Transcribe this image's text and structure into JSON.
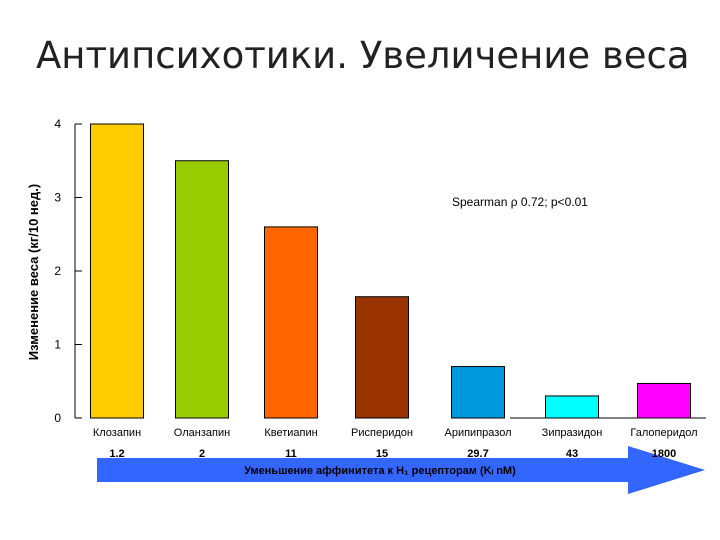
{
  "slide": {
    "title": "Антипсихотики. Увеличение веса"
  },
  "chart_data": {
    "type": "bar",
    "title": "",
    "xlabel": "",
    "ylabel": "Изменение веса (кг/10 нед.)",
    "ylim": [
      0,
      4
    ],
    "yticks": [
      "0",
      "1",
      "2",
      "3",
      "4"
    ],
    "grid": false,
    "categories": [
      "Клозапин",
      "Оланзапин",
      "Кветиапин",
      "Рисперидон",
      "Арипипразол",
      "Зипразидон",
      "Галоперидол"
    ],
    "values": [
      4.0,
      3.5,
      2.6,
      1.65,
      0.7,
      0.3,
      0.47
    ],
    "bar_colors": [
      "#FFCC00",
      "#99CC00",
      "#FF6600",
      "#993300",
      "#0099DD",
      "#00FFFF",
      "#FF00FF"
    ],
    "affinity_values": [
      "1.2",
      "2",
      "11",
      "15",
      "29.7",
      "43",
      "1800"
    ],
    "annotation": "Spearman ρ 0.72; p<0.01",
    "arrow_label": "Уменьшение аффинитета к H₁ рецепторам (Kᵢ nM)",
    "arrow_color": "#3366FF"
  }
}
